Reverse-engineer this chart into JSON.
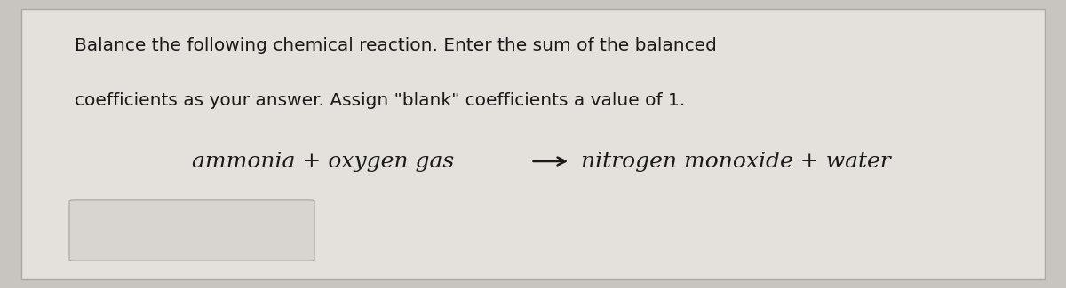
{
  "background_color": "#c8c4c0",
  "card_color": "#e4e0dc",
  "card_border_color": "#aaa8a5",
  "title_line1": "Balance the following chemical reaction. Enter the sum of the balanced",
  "title_line2": "coefficients as your answer. Assign \"blank\" coefficients a value of 1.",
  "reaction_left": "ammonia + oxygen gas",
  "reaction_right": "nitrogen monoxide + water",
  "title_fontsize": 14.5,
  "reaction_fontsize": 18,
  "text_color": "#1a1a1a",
  "box_color": "#d8d4d0",
  "box_border_color": "#b0aeac"
}
